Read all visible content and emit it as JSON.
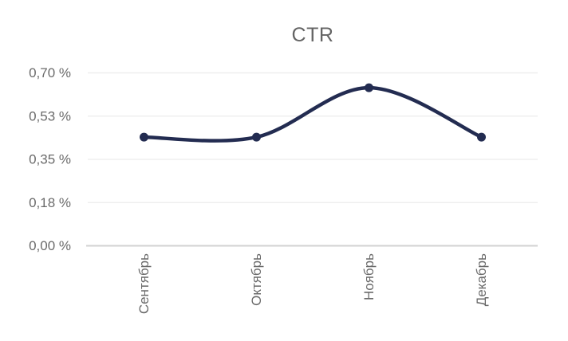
{
  "chart_data": {
    "type": "line",
    "title": "CTR",
    "categories": [
      "Сентябрь",
      "Октябрь",
      "Ноябрь",
      "Декабрь"
    ],
    "series": [
      {
        "name": "CTR",
        "values": [
          0.44,
          0.44,
          0.64,
          0.44
        ]
      }
    ],
    "ylim": [
      0,
      0.7
    ],
    "ytick_values": [
      0,
      0.175,
      0.35,
      0.525,
      0.7
    ],
    "ytick_labels": [
      "0,00 %",
      "0,18 %",
      "0,35 %",
      "0,53 %",
      "0,70 %"
    ],
    "xlabel": "",
    "ylabel": "",
    "grid": "horizontal",
    "legend_position": "none",
    "smooth_line": true,
    "colors": {
      "line": "#232c51",
      "marker": "#232c51",
      "title_text": "#646464",
      "axis_text": "#6a6a6a",
      "gridline": "#ececec",
      "zero_axis_line": "#d2d2d2",
      "background": "#ffffff"
    }
  }
}
